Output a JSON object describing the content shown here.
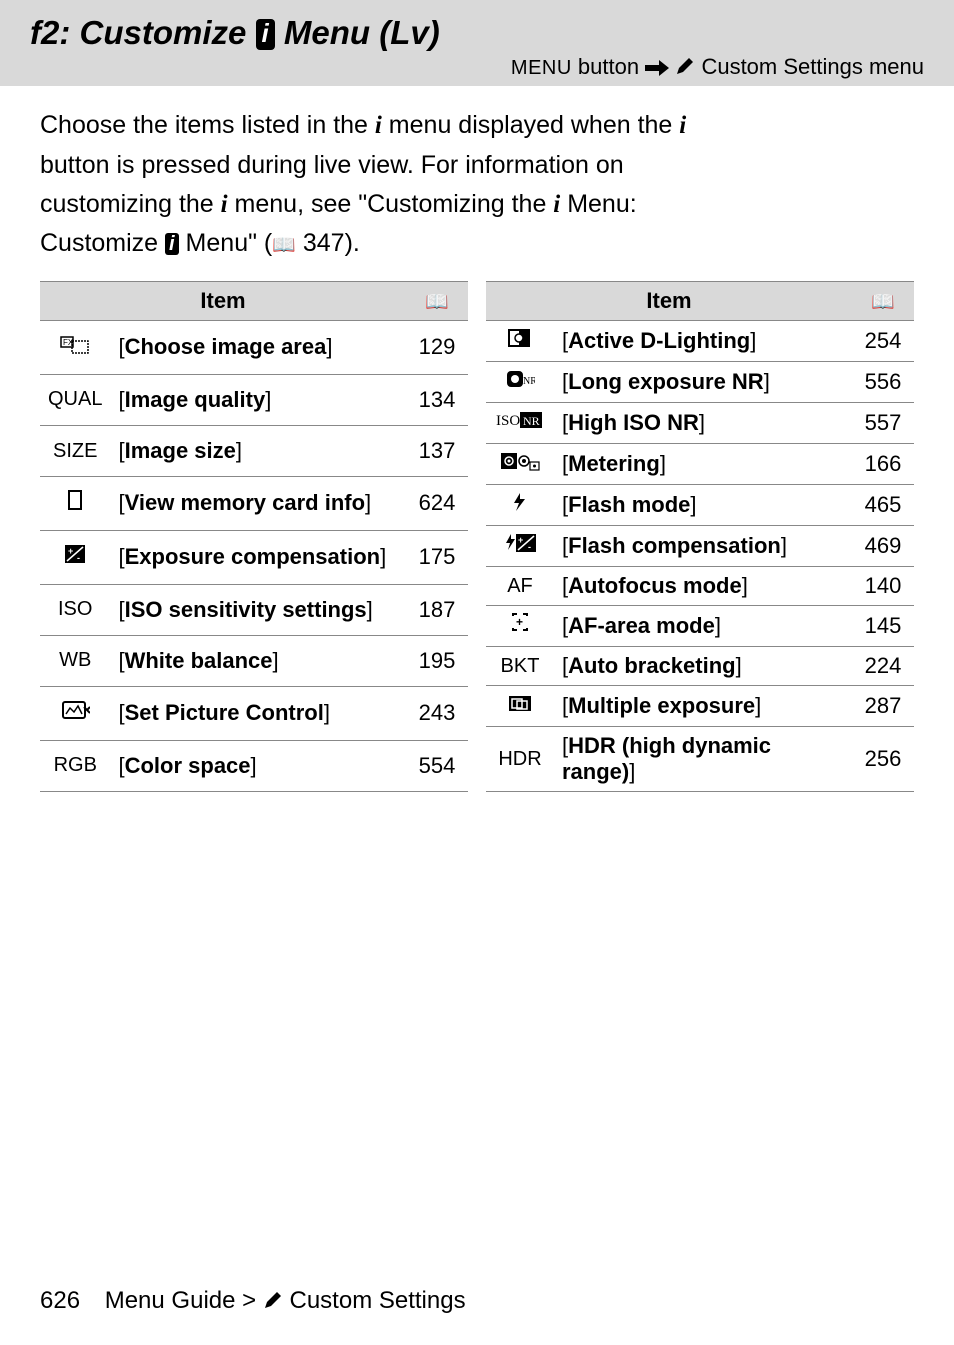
{
  "header": {
    "title_prefix": "f2: Customize ",
    "title_suffix": " Menu (Lv)",
    "menu_label": "MENU",
    "button_label": " button ",
    "custom_settings_label": " Custom Settings menu"
  },
  "intro": {
    "line1_a": "Choose the items listed in the ",
    "line1_b": " menu displayed when the ",
    "line2": "button is pressed during live view. For information on ",
    "line3_a": "customizing the ",
    "line3_b": " menu, see \"Customizing the ",
    "line3_c": " Menu: ",
    "line4_a": "Customize ",
    "line4_b": " Menu\" (",
    "line4_c": " 347)."
  },
  "table_headers": {
    "item": "Item"
  },
  "left_rows": [
    {
      "icon_svg": "fx-frame",
      "label": "Choose image area",
      "page": "129"
    },
    {
      "icon_text": "QUAL",
      "label": "Image quality",
      "page": "134"
    },
    {
      "icon_text": "SIZE",
      "label": "Image size",
      "page": "137"
    },
    {
      "icon_svg": "card",
      "label": "View memory card info",
      "page": "624"
    },
    {
      "icon_svg": "exp-comp",
      "label": "Exposure compensation",
      "page": "175"
    },
    {
      "icon_text": "ISO",
      "label": "ISO sensitivity settings",
      "page": "187"
    },
    {
      "icon_text": "WB",
      "label": "White balance",
      "page": "195"
    },
    {
      "icon_svg": "picture-ctrl",
      "label": "Set Picture Control",
      "page": "243"
    },
    {
      "icon_text": "RGB",
      "label": "Color space",
      "page": "554"
    }
  ],
  "right_rows": [
    {
      "icon_svg": "d-lighting",
      "label": "Active D-Lighting",
      "page": "254"
    },
    {
      "icon_svg": "long-nr",
      "label": "Long exposure NR",
      "page": "556"
    },
    {
      "icon_svg": "iso-nr",
      "label": "High ISO NR",
      "page": "557"
    },
    {
      "icon_svg": "metering",
      "label": "Metering",
      "page": "166"
    },
    {
      "icon_svg": "flash",
      "label": "Flash mode",
      "page": "465"
    },
    {
      "icon_svg": "flash-comp",
      "label": "Flash compensation",
      "page": "469"
    },
    {
      "icon_text": "AF",
      "label": "Autofocus mode",
      "page": "140"
    },
    {
      "icon_svg": "af-area",
      "label": "AF-area mode",
      "page": "145"
    },
    {
      "icon_text": "BKT",
      "label": "Auto bracketing",
      "page": "224"
    },
    {
      "icon_svg": "multi-exp",
      "label": "Multiple exposure",
      "page": "287"
    },
    {
      "icon_text": "HDR",
      "label": "HDR (high dynamic range)",
      "page": "256"
    }
  ],
  "footer": {
    "page": "626",
    "crumb_a": "Menu Guide > ",
    "crumb_b": " Custom Settings"
  }
}
